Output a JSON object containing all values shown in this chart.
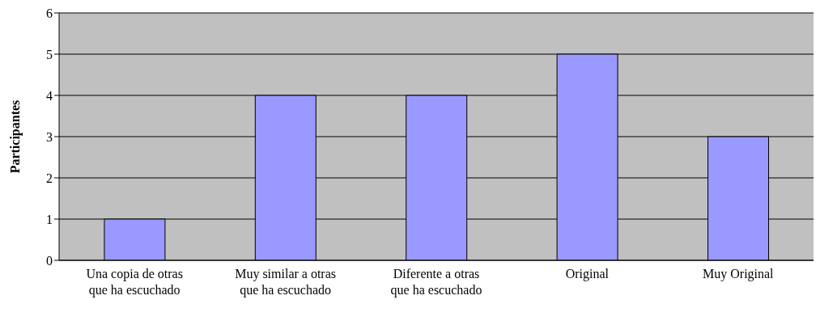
{
  "chart_data": {
    "type": "bar",
    "ylabel": "Participantes",
    "categories": [
      "Una copia de otras que ha escuchado",
      "Muy similar a otras que ha escuchado",
      "Diferente a otras que ha escuchado",
      "Original",
      "Muy Original"
    ],
    "values": [
      1,
      4,
      4,
      5,
      3
    ],
    "color": "#9999ff",
    "ylim": [
      0,
      6
    ],
    "yticks": [
      0,
      1,
      2,
      3,
      4,
      5,
      6
    ],
    "grid": "y",
    "legend": false
  }
}
